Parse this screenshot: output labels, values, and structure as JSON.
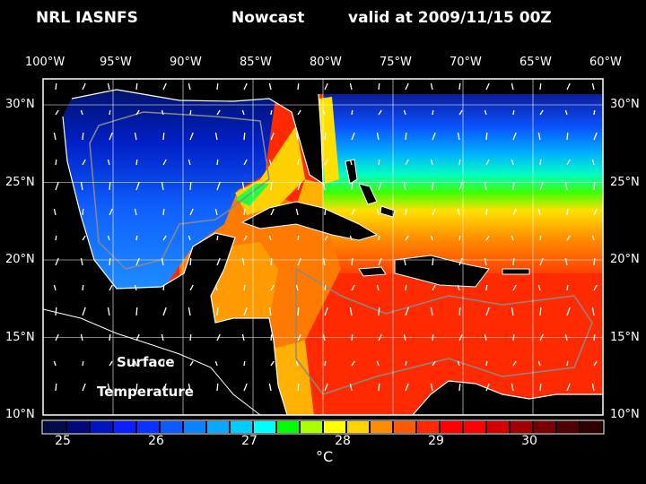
{
  "title": {
    "left": "NRL IASNFS",
    "product": "Nowcast",
    "valid": "valid at 2009/11/15 00Z"
  },
  "lon_labels": [
    "100°W",
    "95°W",
    "90°W",
    "85°W",
    "80°W",
    "75°W",
    "70°W",
    "65°W",
    "60°W"
  ],
  "lat_labels": [
    "30°N",
    "25°N",
    "20°N",
    "15°N",
    "10°N"
  ],
  "annotation": {
    "line1": "Surface",
    "line2": "Temperature"
  },
  "colorbar": {
    "unit": "°C",
    "labels": [
      "25",
      "26",
      "27",
      "28",
      "29",
      "30"
    ],
    "colors": [
      "#020a4a",
      "#00087a",
      "#0014c0",
      "#0a1eff",
      "#0a32ff",
      "#0a5aff",
      "#0a82ff",
      "#0aa8ff",
      "#00ccff",
      "#00ffff",
      "#00ff00",
      "#a8ff00",
      "#ffff00",
      "#ffd200",
      "#ff8c00",
      "#ff5a00",
      "#ff2800",
      "#ff0000",
      "#ff0000",
      "#d20000",
      "#a00000",
      "#780000",
      "#500000",
      "#300000"
    ]
  }
}
